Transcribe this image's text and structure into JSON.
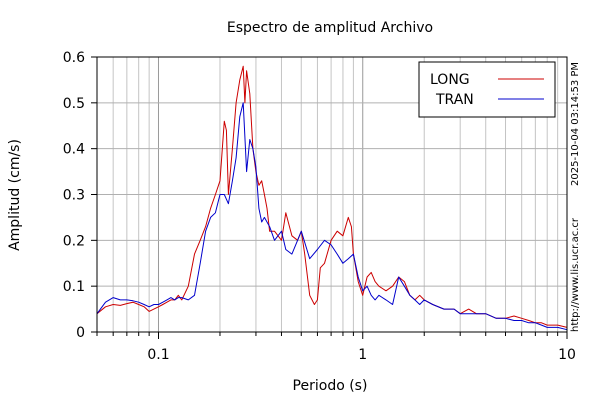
{
  "chart_data": {
    "type": "line",
    "title": "Espectro de amplitud Archivo",
    "xlabel": "Periodo (s)",
    "ylabel": "Amplitud (cm/s)",
    "x_scale": "log",
    "xlim": [
      0.05,
      10
    ],
    "ylim": [
      0,
      0.6
    ],
    "x_ticks": [
      {
        "value": 0.1,
        "label": "0.1"
      },
      {
        "value": 1,
        "label": "1"
      },
      {
        "value": 10,
        "label": "10"
      }
    ],
    "y_ticks": [
      {
        "value": 0,
        "label": "0"
      },
      {
        "value": 0.1,
        "label": "0.1"
      },
      {
        "value": 0.2,
        "label": "0.2"
      },
      {
        "value": 0.3,
        "label": "0.3"
      },
      {
        "value": 0.4,
        "label": "0.4"
      },
      {
        "value": 0.5,
        "label": "0.5"
      },
      {
        "value": 0.6,
        "label": "0.6"
      }
    ],
    "grid": true,
    "legend_position": "top-right",
    "series": [
      {
        "name": "LONG",
        "color": "#cc0000",
        "x": [
          0.05,
          0.055,
          0.06,
          0.065,
          0.07,
          0.075,
          0.08,
          0.085,
          0.09,
          0.095,
          0.1,
          0.105,
          0.11,
          0.115,
          0.12,
          0.125,
          0.13,
          0.14,
          0.15,
          0.16,
          0.17,
          0.18,
          0.19,
          0.2,
          0.21,
          0.215,
          0.22,
          0.23,
          0.24,
          0.25,
          0.26,
          0.265,
          0.27,
          0.28,
          0.29,
          0.3,
          0.31,
          0.32,
          0.33,
          0.34,
          0.35,
          0.37,
          0.4,
          0.42,
          0.45,
          0.48,
          0.5,
          0.52,
          0.55,
          0.58,
          0.6,
          0.62,
          0.65,
          0.7,
          0.75,
          0.8,
          0.85,
          0.88,
          0.9,
          0.95,
          1.0,
          1.05,
          1.1,
          1.15,
          1.2,
          1.3,
          1.4,
          1.5,
          1.6,
          1.7,
          1.8,
          1.9,
          2.0,
          2.2,
          2.5,
          2.8,
          3.0,
          3.3,
          3.6,
          4.0,
          4.5,
          5.0,
          5.5,
          6.0,
          6.5,
          7.0,
          7.5,
          8.0,
          9.0,
          10.0
        ],
        "y": [
          0.04,
          0.055,
          0.06,
          0.058,
          0.062,
          0.065,
          0.06,
          0.055,
          0.045,
          0.05,
          0.055,
          0.06,
          0.065,
          0.07,
          0.07,
          0.08,
          0.07,
          0.1,
          0.17,
          0.2,
          0.23,
          0.27,
          0.3,
          0.33,
          0.46,
          0.44,
          0.3,
          0.4,
          0.5,
          0.55,
          0.58,
          0.5,
          0.57,
          0.52,
          0.4,
          0.35,
          0.32,
          0.33,
          0.3,
          0.27,
          0.22,
          0.22,
          0.2,
          0.26,
          0.21,
          0.2,
          0.22,
          0.17,
          0.08,
          0.06,
          0.07,
          0.14,
          0.15,
          0.2,
          0.22,
          0.21,
          0.25,
          0.23,
          0.17,
          0.11,
          0.08,
          0.12,
          0.13,
          0.11,
          0.1,
          0.09,
          0.1,
          0.12,
          0.11,
          0.08,
          0.07,
          0.08,
          0.07,
          0.06,
          0.05,
          0.05,
          0.04,
          0.05,
          0.04,
          0.04,
          0.03,
          0.03,
          0.035,
          0.03,
          0.025,
          0.02,
          0.02,
          0.015,
          0.015,
          0.01
        ]
      },
      {
        "name": "TRAN",
        "color": "#0000cc",
        "x": [
          0.05,
          0.055,
          0.06,
          0.065,
          0.07,
          0.075,
          0.08,
          0.085,
          0.09,
          0.095,
          0.1,
          0.105,
          0.11,
          0.115,
          0.12,
          0.125,
          0.13,
          0.14,
          0.15,
          0.16,
          0.17,
          0.18,
          0.19,
          0.2,
          0.21,
          0.22,
          0.23,
          0.24,
          0.25,
          0.26,
          0.27,
          0.28,
          0.29,
          0.3,
          0.31,
          0.32,
          0.33,
          0.35,
          0.37,
          0.4,
          0.42,
          0.45,
          0.48,
          0.5,
          0.55,
          0.6,
          0.65,
          0.7,
          0.75,
          0.8,
          0.85,
          0.9,
          0.95,
          1.0,
          1.05,
          1.1,
          1.15,
          1.2,
          1.3,
          1.4,
          1.5,
          1.6,
          1.7,
          1.8,
          1.9,
          2.0,
          2.2,
          2.5,
          2.8,
          3.0,
          3.3,
          3.6,
          4.0,
          4.5,
          5.0,
          5.5,
          6.0,
          6.5,
          7.0,
          7.5,
          8.0,
          9.0,
          10.0
        ],
        "y": [
          0.04,
          0.065,
          0.075,
          0.07,
          0.07,
          0.068,
          0.065,
          0.06,
          0.055,
          0.06,
          0.06,
          0.065,
          0.07,
          0.075,
          0.07,
          0.075,
          0.075,
          0.07,
          0.08,
          0.15,
          0.22,
          0.25,
          0.26,
          0.3,
          0.3,
          0.28,
          0.33,
          0.38,
          0.47,
          0.5,
          0.35,
          0.42,
          0.4,
          0.36,
          0.27,
          0.24,
          0.25,
          0.23,
          0.2,
          0.22,
          0.18,
          0.17,
          0.2,
          0.22,
          0.16,
          0.18,
          0.2,
          0.19,
          0.17,
          0.15,
          0.16,
          0.17,
          0.12,
          0.09,
          0.1,
          0.08,
          0.07,
          0.08,
          0.07,
          0.06,
          0.12,
          0.1,
          0.08,
          0.07,
          0.06,
          0.07,
          0.06,
          0.05,
          0.05,
          0.04,
          0.04,
          0.04,
          0.04,
          0.03,
          0.03,
          0.025,
          0.025,
          0.02,
          0.02,
          0.015,
          0.01,
          0.01,
          0.005
        ]
      }
    ]
  },
  "side_labels": {
    "timestamp": "2025-10-04 03:14:53 PM",
    "url": "http://www.lis.ucr.ac.cr"
  }
}
